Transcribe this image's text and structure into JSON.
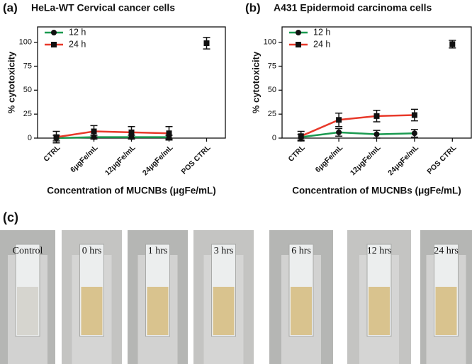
{
  "chart_data": [
    {
      "type": "line",
      "label": "(a)",
      "title": "HeLa-WT Cervical cancer cells",
      "x_label": "Concentration of MUCNBs (μgFe/mL)",
      "y_label": "% cytotoxicity",
      "categories": [
        "CTRL",
        "6μgFe/mL",
        "12μgFe/mL",
        "24μgFe/mL",
        "POS CTRL"
      ],
      "ylim": [
        0,
        116
      ],
      "yticks": [
        0,
        25,
        50,
        75,
        100
      ],
      "series": [
        {
          "name": "12 h",
          "color": "#1a9a50",
          "marker": "circle",
          "values": [
            0,
            1,
            1,
            1,
            null
          ],
          "errors": [
            3,
            2,
            2,
            2,
            null
          ]
        },
        {
          "name": "24 h",
          "color": "#e8392a",
          "marker": "square",
          "values": [
            1,
            7,
            6,
            5,
            null
          ],
          "errors": [
            6,
            6,
            6,
            7,
            null
          ]
        }
      ],
      "control": {
        "category": 4,
        "value": 99,
        "error": 6
      }
    },
    {
      "type": "line",
      "label": "(b)",
      "title": "A431 Epidermoid carcinoma cells",
      "x_label": "Concentration of MUCNBs (μgFe/mL)",
      "y_label": "% cytotoxicity",
      "categories": [
        "CTRL",
        "6μgFe/mL",
        "12μgFe/mL",
        "24μgFe/mL",
        "POS CTRL"
      ],
      "ylim": [
        0,
        116
      ],
      "yticks": [
        0,
        25,
        50,
        75,
        100
      ],
      "series": [
        {
          "name": "12 h",
          "color": "#1a9a50",
          "marker": "circle",
          "values": [
            1,
            6,
            4,
            5,
            null
          ],
          "errors": [
            3,
            4,
            4,
            4,
            null
          ]
        },
        {
          "name": "24 h",
          "color": "#e8392a",
          "marker": "square",
          "values": [
            2,
            19,
            23,
            24,
            null
          ],
          "errors": [
            5,
            7,
            6,
            6,
            null
          ]
        }
      ],
      "control": {
        "category": 4,
        "value": 98,
        "error": 4
      }
    }
  ],
  "photos": {
    "label": "(c)",
    "captions": [
      "Control",
      "0 hrs",
      "1 hrs",
      "3 hrs",
      "6 hrs",
      "12 hrs",
      "24 hrs"
    ]
  }
}
